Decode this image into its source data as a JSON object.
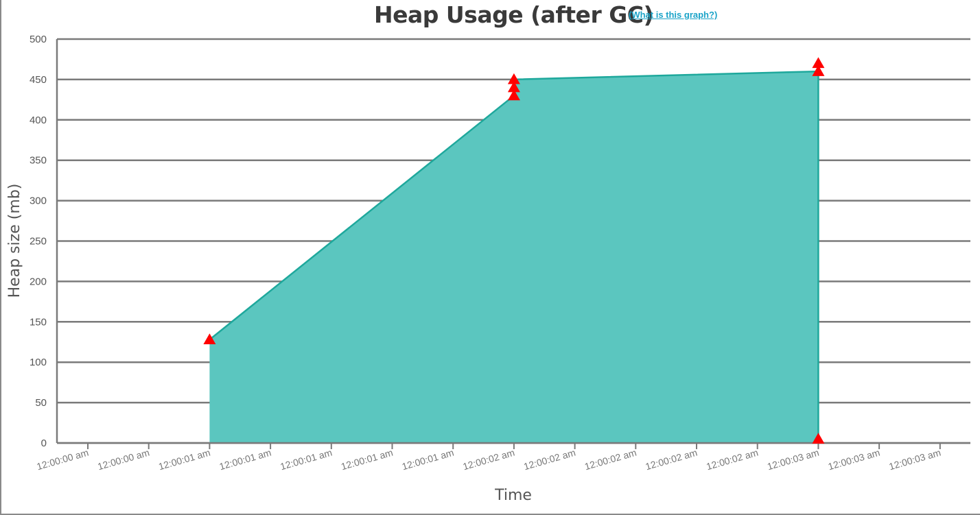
{
  "header": {
    "title": "Heap Usage (after GC)",
    "help_link": "(What is this graph?)"
  },
  "colors": {
    "area_fill": "#5bc6bf",
    "area_stroke": "#1ea89c",
    "marker": "#ff0000",
    "grid": "#7a7a7a"
  },
  "chart_data": {
    "type": "area",
    "title": "Heap Usage (after GC)",
    "xlabel": "Time",
    "ylabel": "Heap size (mb)",
    "ylim": [
      0,
      500
    ],
    "y_ticks": [
      0,
      50,
      100,
      150,
      200,
      250,
      300,
      350,
      400,
      450,
      500
    ],
    "x_tick_labels": [
      "12:00:00 am",
      "12:00:00 am",
      "12:00:01 am",
      "12:00:01 am",
      "12:00:01 am",
      "12:00:01 am",
      "12:00:01 am",
      "12:00:02 am",
      "12:00:02 am",
      "12:00:02 am",
      "12:00:02 am",
      "12:00:02 am",
      "12:00:03 am",
      "12:00:03 am",
      "12:00:03 am"
    ],
    "grid": true,
    "series": [
      {
        "points": [
          {
            "x": "12:00:01 am",
            "y": 128
          },
          {
            "x": "12:00:02 am",
            "y": 430
          },
          {
            "x": "12:00:02 am",
            "y": 440
          },
          {
            "x": "12:00:02 am",
            "y": 450
          },
          {
            "x": "12:00:03 am",
            "y": 460
          },
          {
            "x": "12:00:03 am",
            "y": 470
          },
          {
            "x": "12:00:03 am",
            "y": 5
          }
        ]
      }
    ]
  }
}
